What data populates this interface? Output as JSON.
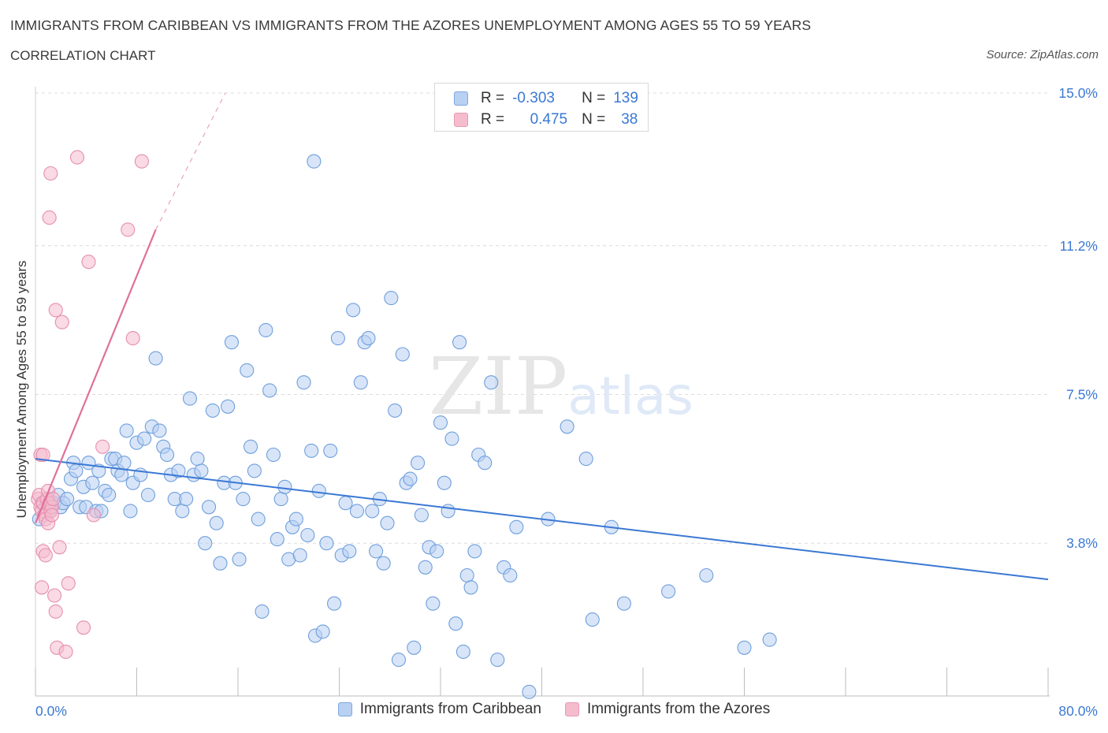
{
  "header": {
    "title": "IMMIGRANTS FROM CARIBBEAN VS IMMIGRANTS FROM THE AZORES UNEMPLOYMENT AMONG AGES 55 TO 59 YEARS",
    "subtitle": "CORRELATION CHART",
    "source": "Source: ZipAtlas.com"
  },
  "watermark": {
    "zip": "ZIP",
    "atlas": "atlas"
  },
  "colors": {
    "blue": "#3a78d4",
    "blue_fill": "#b8d0f2",
    "pink": "#e0709a",
    "pink_fill": "#f5bccd",
    "grid": "#d9d9d9",
    "axis_text": "#3a78d4"
  },
  "stats_box": {
    "rows": [
      {
        "r_label": "R =",
        "r_value": "-0.303",
        "n_label": "N =",
        "n_value": "139"
      },
      {
        "r_label": "R =",
        "r_value": "0.475",
        "n_label": "N =",
        "n_value": "38"
      }
    ]
  },
  "legend": {
    "items": [
      {
        "label": "Immigrants from Caribbean"
      },
      {
        "label": "Immigrants from the Azores"
      }
    ]
  },
  "chart_data": {
    "type": "scatter",
    "xlabel": "",
    "ylabel": "Unemployment Among Ages 55 to 59 years",
    "xlim": [
      0,
      80
    ],
    "ylim": [
      0,
      15.0
    ],
    "x_tick_labels": [
      "0.0%",
      "80.0%"
    ],
    "y_tick_labels": [
      "3.8%",
      "7.5%",
      "11.2%",
      "15.0%"
    ],
    "y_ticks": [
      3.8,
      7.5,
      11.2,
      15.0
    ],
    "grid": true,
    "legend_position": "bottom",
    "series": [
      {
        "name": "Immigrants from Caribbean",
        "color": "#3a78d4",
        "R": -0.303,
        "N": 139,
        "trend": {
          "x0": 0,
          "y0": 5.9,
          "x1": 80,
          "y1": 2.9
        },
        "points": [
          [
            0.3,
            4.4
          ],
          [
            0.5,
            4.8
          ],
          [
            0.8,
            4.7
          ],
          [
            1.0,
            4.9
          ],
          [
            1.2,
            4.6
          ],
          [
            1.5,
            4.8
          ],
          [
            1.8,
            5.0
          ],
          [
            2.0,
            4.7
          ],
          [
            2.2,
            4.8
          ],
          [
            2.5,
            4.9
          ],
          [
            2.8,
            5.4
          ],
          [
            3.0,
            5.8
          ],
          [
            3.2,
            5.6
          ],
          [
            3.5,
            4.7
          ],
          [
            3.8,
            5.2
          ],
          [
            4.0,
            4.7
          ],
          [
            4.2,
            5.8
          ],
          [
            4.5,
            5.3
          ],
          [
            4.8,
            4.6
          ],
          [
            5.0,
            5.6
          ],
          [
            5.2,
            4.6
          ],
          [
            5.5,
            5.1
          ],
          [
            5.8,
            5.0
          ],
          [
            6.0,
            5.9
          ],
          [
            6.3,
            5.9
          ],
          [
            6.5,
            5.6
          ],
          [
            6.8,
            5.5
          ],
          [
            7.0,
            5.8
          ],
          [
            7.2,
            6.6
          ],
          [
            7.5,
            4.6
          ],
          [
            7.7,
            5.3
          ],
          [
            8.0,
            6.3
          ],
          [
            8.3,
            5.5
          ],
          [
            8.6,
            6.4
          ],
          [
            8.9,
            5.0
          ],
          [
            9.2,
            6.7
          ],
          [
            9.5,
            8.4
          ],
          [
            9.8,
            6.6
          ],
          [
            10.1,
            6.2
          ],
          [
            10.4,
            6.0
          ],
          [
            10.7,
            5.5
          ],
          [
            11.0,
            4.9
          ],
          [
            11.3,
            5.6
          ],
          [
            11.6,
            4.6
          ],
          [
            11.9,
            4.9
          ],
          [
            12.2,
            7.4
          ],
          [
            12.5,
            5.5
          ],
          [
            12.8,
            5.9
          ],
          [
            13.1,
            5.6
          ],
          [
            13.4,
            3.8
          ],
          [
            13.7,
            4.7
          ],
          [
            14.0,
            7.1
          ],
          [
            14.3,
            4.3
          ],
          [
            14.6,
            3.3
          ],
          [
            14.9,
            5.3
          ],
          [
            15.2,
            7.2
          ],
          [
            15.5,
            8.8
          ],
          [
            15.8,
            5.3
          ],
          [
            16.1,
            3.4
          ],
          [
            16.4,
            4.9
          ],
          [
            16.7,
            8.1
          ],
          [
            17.0,
            6.2
          ],
          [
            17.3,
            5.6
          ],
          [
            17.6,
            4.4
          ],
          [
            17.9,
            2.1
          ],
          [
            18.2,
            9.1
          ],
          [
            18.5,
            7.6
          ],
          [
            18.8,
            6.0
          ],
          [
            19.1,
            3.9
          ],
          [
            19.4,
            4.9
          ],
          [
            19.7,
            5.2
          ],
          [
            20.0,
            3.4
          ],
          [
            20.3,
            4.2
          ],
          [
            20.6,
            4.4
          ],
          [
            20.9,
            3.5
          ],
          [
            21.2,
            7.8
          ],
          [
            21.5,
            4.0
          ],
          [
            21.8,
            6.1
          ],
          [
            22.1,
            1.5
          ],
          [
            22.4,
            5.1
          ],
          [
            22.7,
            1.6
          ],
          [
            23.0,
            3.8
          ],
          [
            23.3,
            6.1
          ],
          [
            23.6,
            2.3
          ],
          [
            23.9,
            8.9
          ],
          [
            24.2,
            3.5
          ],
          [
            24.5,
            4.8
          ],
          [
            24.8,
            3.6
          ],
          [
            25.1,
            9.6
          ],
          [
            25.4,
            4.6
          ],
          [
            25.7,
            7.8
          ],
          [
            26.0,
            8.8
          ],
          [
            26.3,
            8.9
          ],
          [
            26.6,
            4.6
          ],
          [
            26.9,
            3.6
          ],
          [
            27.2,
            4.9
          ],
          [
            27.5,
            3.3
          ],
          [
            27.8,
            4.3
          ],
          [
            28.1,
            9.9
          ],
          [
            28.4,
            7.1
          ],
          [
            28.7,
            0.9
          ],
          [
            29.0,
            8.5
          ],
          [
            29.3,
            5.3
          ],
          [
            29.6,
            5.4
          ],
          [
            29.9,
            1.2
          ],
          [
            30.2,
            5.8
          ],
          [
            30.5,
            4.5
          ],
          [
            30.8,
            3.2
          ],
          [
            31.1,
            3.7
          ],
          [
            31.4,
            2.3
          ],
          [
            31.7,
            3.6
          ],
          [
            32.0,
            6.8
          ],
          [
            32.3,
            5.3
          ],
          [
            32.6,
            4.6
          ],
          [
            32.9,
            6.4
          ],
          [
            33.2,
            1.8
          ],
          [
            33.5,
            8.8
          ],
          [
            33.8,
            1.1
          ],
          [
            34.1,
            3.0
          ],
          [
            34.4,
            2.7
          ],
          [
            34.7,
            3.6
          ],
          [
            35.0,
            6.0
          ],
          [
            35.5,
            5.8
          ],
          [
            36.0,
            7.8
          ],
          [
            36.5,
            0.9
          ],
          [
            37.0,
            3.2
          ],
          [
            37.5,
            3.0
          ],
          [
            38.0,
            4.2
          ],
          [
            39.0,
            0.1
          ],
          [
            40.5,
            4.4
          ],
          [
            42.0,
            6.7
          ],
          [
            43.5,
            5.9
          ],
          [
            44.0,
            1.9
          ],
          [
            45.5,
            4.2
          ],
          [
            46.5,
            2.3
          ],
          [
            50.0,
            2.6
          ],
          [
            53.0,
            3.0
          ],
          [
            56.0,
            1.2
          ],
          [
            58.0,
            1.4
          ],
          [
            22.0,
            13.3
          ]
        ]
      },
      {
        "name": "Immigrants from the Azores",
        "color": "#e0709a",
        "R": 0.475,
        "N": 38,
        "trend": {
          "x0": 0,
          "y0": 4.3,
          "x1": 9.5,
          "y1": 11.6,
          "dash_to": {
            "x": 15,
            "y": 15.0
          }
        },
        "points": [
          [
            0.2,
            4.9
          ],
          [
            0.3,
            5.0
          ],
          [
            0.4,
            4.7
          ],
          [
            0.5,
            4.6
          ],
          [
            0.6,
            4.8
          ],
          [
            0.7,
            4.5
          ],
          [
            0.8,
            4.4
          ],
          [
            0.9,
            4.9
          ],
          [
            1.0,
            5.1
          ],
          [
            1.1,
            4.8
          ],
          [
            1.2,
            4.6
          ],
          [
            1.3,
            4.7
          ],
          [
            1.4,
            4.9
          ],
          [
            0.4,
            6.0
          ],
          [
            0.6,
            3.6
          ],
          [
            0.8,
            3.5
          ],
          [
            0.5,
            2.7
          ],
          [
            1.5,
            2.5
          ],
          [
            1.6,
            2.1
          ],
          [
            1.7,
            1.2
          ],
          [
            2.4,
            1.1
          ],
          [
            2.6,
            2.8
          ],
          [
            3.8,
            1.7
          ],
          [
            1.2,
            13.0
          ],
          [
            3.3,
            13.4
          ],
          [
            8.4,
            13.3
          ],
          [
            1.1,
            11.9
          ],
          [
            7.3,
            11.6
          ],
          [
            4.2,
            10.8
          ],
          [
            1.6,
            9.6
          ],
          [
            2.1,
            9.3
          ],
          [
            7.7,
            8.9
          ],
          [
            4.6,
            4.5
          ],
          [
            5.3,
            6.2
          ],
          [
            1.9,
            3.7
          ],
          [
            1.0,
            4.3
          ],
          [
            0.6,
            6.0
          ],
          [
            1.3,
            4.5
          ]
        ]
      }
    ]
  }
}
